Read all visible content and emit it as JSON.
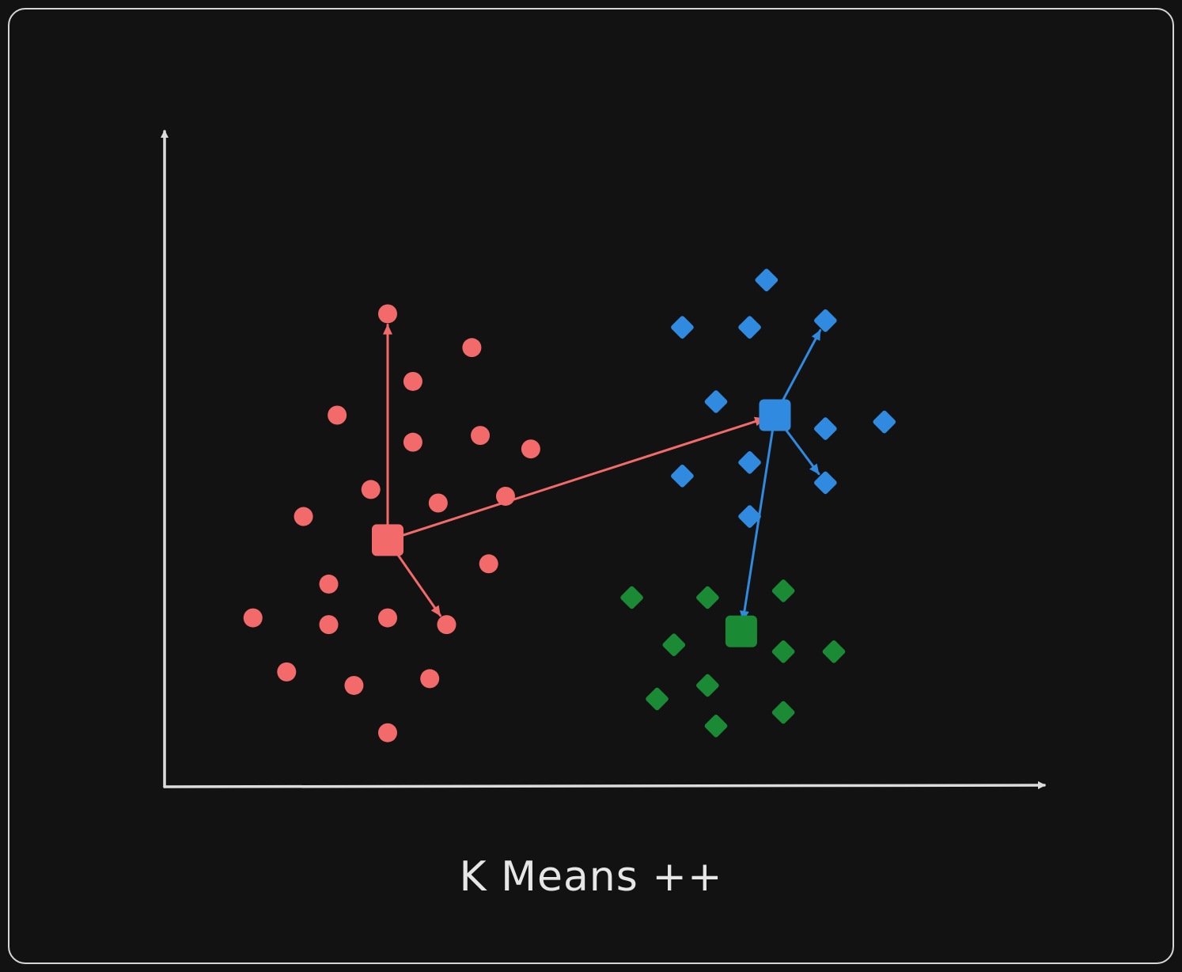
{
  "title": "K Means ++",
  "colors": {
    "background": "#121212",
    "frame": "#d6d6d6",
    "axis": "#dcdcdc",
    "red": "#f26a6a",
    "blue": "#2f8ae0",
    "green": "#1a8a35"
  },
  "chart_data": {
    "type": "scatter",
    "clusters": [
      {
        "color": "red",
        "marker": "circle",
        "centroid": [
          2.4,
          3.65
        ],
        "points": [
          [
            2.4,
            7.0
          ],
          [
            3.4,
            6.5
          ],
          [
            2.7,
            6.0
          ],
          [
            1.8,
            5.5
          ],
          [
            2.7,
            5.1
          ],
          [
            3.5,
            5.2
          ],
          [
            4.1,
            5.0
          ],
          [
            2.2,
            4.4
          ],
          [
            3.0,
            4.2
          ],
          [
            3.8,
            4.3
          ],
          [
            1.4,
            4.0
          ],
          [
            3.6,
            3.3
          ],
          [
            1.7,
            3.0
          ],
          [
            0.8,
            2.5
          ],
          [
            1.7,
            2.4
          ],
          [
            2.4,
            2.5
          ],
          [
            3.1,
            2.4
          ],
          [
            1.2,
            1.7
          ],
          [
            2.0,
            1.5
          ],
          [
            2.9,
            1.6
          ],
          [
            2.4,
            0.8
          ]
        ]
      },
      {
        "color": "blue",
        "marker": "diamond",
        "centroid": [
          7.0,
          5.5
        ],
        "points": [
          [
            6.9,
            7.5
          ],
          [
            5.9,
            6.8
          ],
          [
            6.7,
            6.8
          ],
          [
            7.6,
            6.9
          ],
          [
            6.3,
            5.7
          ],
          [
            7.6,
            5.3
          ],
          [
            8.3,
            5.4
          ],
          [
            6.7,
            4.8
          ],
          [
            5.9,
            4.6
          ],
          [
            7.6,
            4.5
          ],
          [
            6.7,
            4.0
          ]
        ]
      },
      {
        "color": "green",
        "marker": "diamond",
        "centroid": [
          6.6,
          2.3
        ],
        "points": [
          [
            5.3,
            2.8
          ],
          [
            6.2,
            2.8
          ],
          [
            7.1,
            2.9
          ],
          [
            5.8,
            2.1
          ],
          [
            7.1,
            2.0
          ],
          [
            7.7,
            2.0
          ],
          [
            6.2,
            1.5
          ],
          [
            5.6,
            1.3
          ],
          [
            7.1,
            1.1
          ],
          [
            6.3,
            0.9
          ]
        ]
      }
    ],
    "arrows": [
      {
        "color": "red",
        "from": [
          2.4,
          3.65
        ],
        "to": [
          2.4,
          7.0
        ]
      },
      {
        "color": "red",
        "from": [
          2.4,
          3.65
        ],
        "to": [
          7.0,
          5.5
        ]
      },
      {
        "color": "red",
        "from": [
          2.4,
          3.65
        ],
        "to": [
          3.1,
          2.4
        ]
      },
      {
        "color": "blue",
        "from": [
          7.0,
          5.5
        ],
        "to": [
          7.6,
          6.9
        ]
      },
      {
        "color": "blue",
        "from": [
          7.0,
          5.5
        ],
        "to": [
          7.6,
          4.5
        ]
      },
      {
        "color": "blue",
        "from": [
          7.0,
          5.5
        ],
        "to": [
          6.6,
          2.3
        ]
      }
    ],
    "xlim": [
      -0.25,
      10.2
    ],
    "ylim": [
      0,
      9.7
    ],
    "xlabel": "",
    "ylabel": "",
    "grid": false
  }
}
